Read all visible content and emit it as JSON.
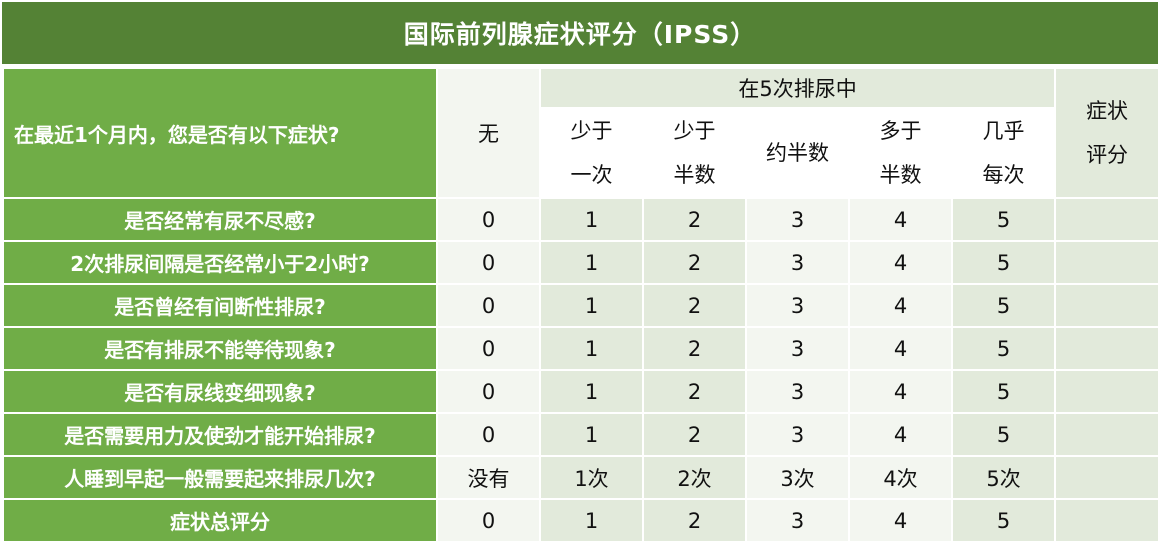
{
  "title": "国际前列腺症状评分（IPSS）",
  "header": {
    "question_col": "在最近1个月内，您是否有以下症状?",
    "none": "无",
    "group": "在5次排尿中",
    "sub_cols": [
      {
        "line1": "少于",
        "line2": "一次"
      },
      {
        "line1": "少于",
        "line2": "半数"
      },
      {
        "line1": "约半数",
        "line2": ""
      },
      {
        "line1": "多于",
        "line2": "半数"
      },
      {
        "line1": "几乎",
        "line2": "每次"
      }
    ],
    "score_col": {
      "line1": "症状",
      "line2": "评分"
    }
  },
  "rows": [
    {
      "question": "是否经常有尿不尽感?",
      "values": [
        "0",
        "1",
        "2",
        "3",
        "4",
        "5"
      ],
      "score": ""
    },
    {
      "question": "2次排尿间隔是否经常小于2小时?",
      "values": [
        "0",
        "1",
        "2",
        "3",
        "4",
        "5"
      ],
      "score": ""
    },
    {
      "question": "是否曾经有间断性排尿?",
      "values": [
        "0",
        "1",
        "2",
        "3",
        "4",
        "5"
      ],
      "score": ""
    },
    {
      "question": "是否有排尿不能等待现象?",
      "values": [
        "0",
        "1",
        "2",
        "3",
        "4",
        "5"
      ],
      "score": ""
    },
    {
      "question": "是否有尿线变细现象?",
      "values": [
        "0",
        "1",
        "2",
        "3",
        "4",
        "5"
      ],
      "score": ""
    },
    {
      "question": "是否需要用力及使劲才能开始排尿?",
      "values": [
        "0",
        "1",
        "2",
        "3",
        "4",
        "5"
      ],
      "score": ""
    },
    {
      "question": "人睡到早起一般需要起来排尿几次?",
      "values": [
        "没有",
        "1次",
        "2次",
        "3次",
        "4次",
        "5次"
      ],
      "score": ""
    },
    {
      "question": "症状总评分",
      "values": [
        "0",
        "1",
        "2",
        "3",
        "4",
        "5"
      ],
      "score": ""
    }
  ]
}
